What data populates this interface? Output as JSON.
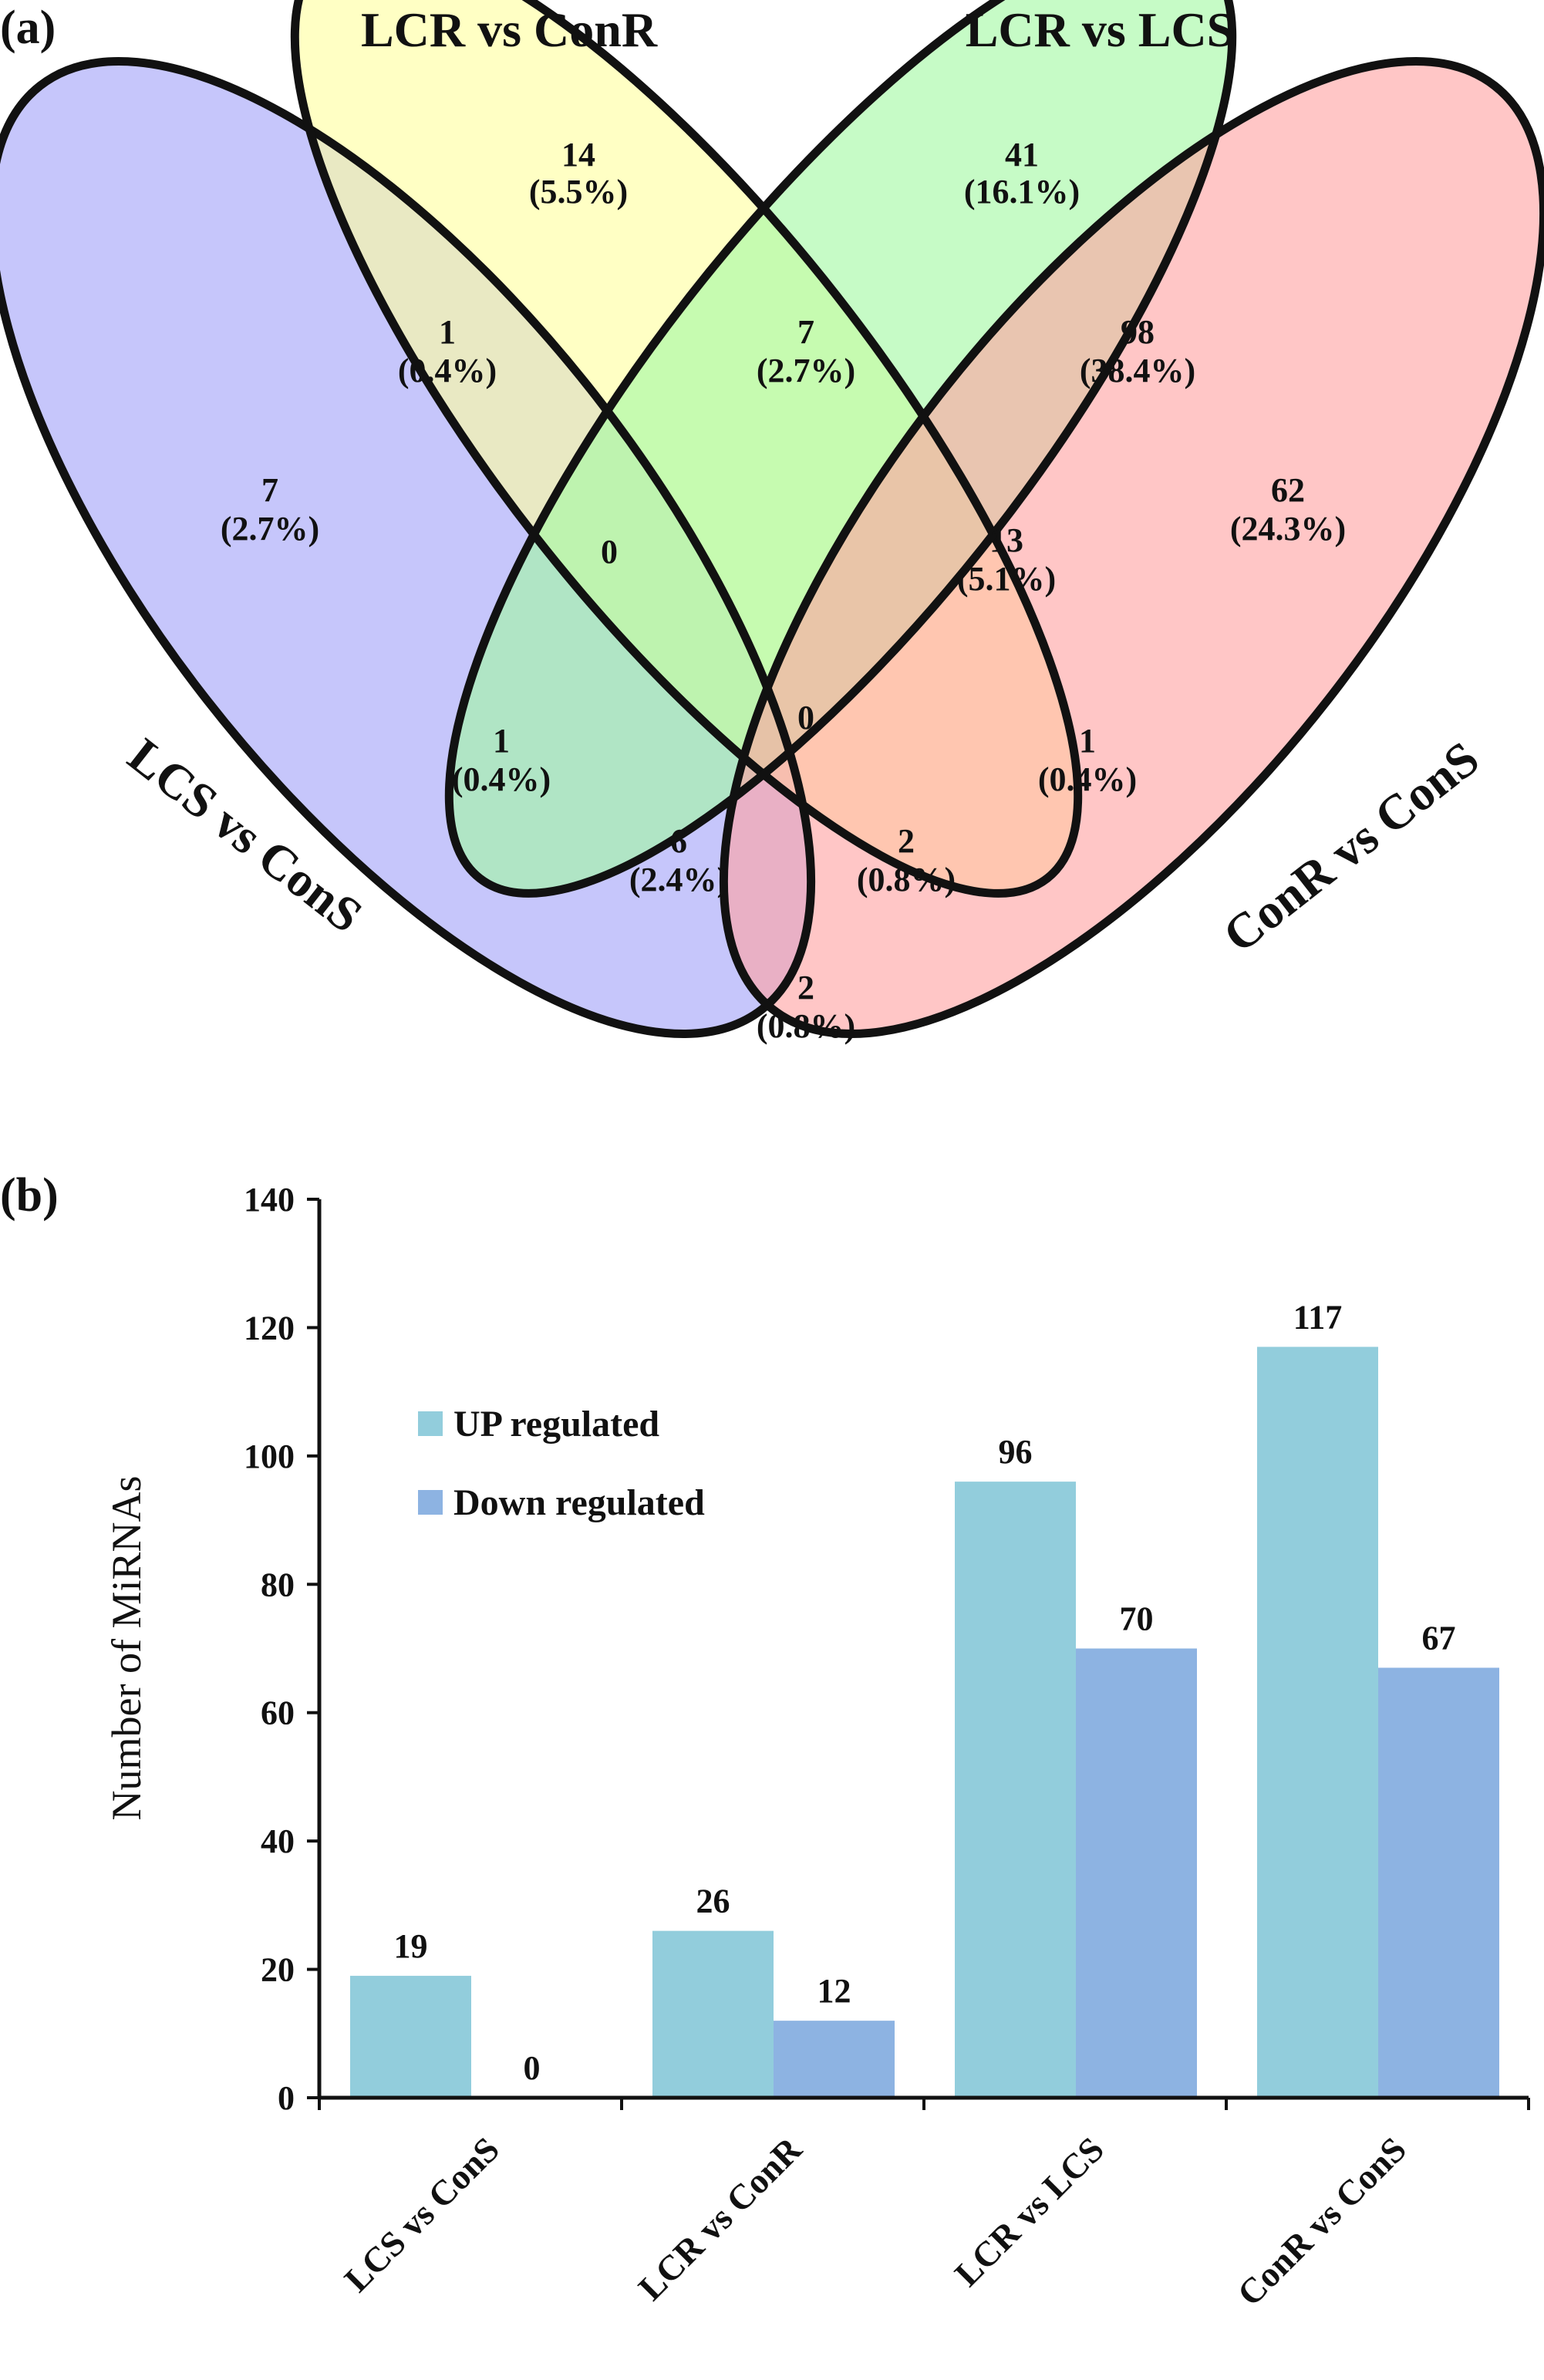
{
  "panels": {
    "a": "(a)",
    "b": "(b)"
  },
  "venn": {
    "sets": [
      {
        "id": "lcs_cons",
        "label": "LCS vs ConS",
        "color": "#a3a3f8"
      },
      {
        "id": "lcr_conr",
        "label": "LCR vs ConR",
        "color": "#ffff9f"
      },
      {
        "id": "lcr_lcs",
        "label": "LCR vs LCS",
        "color": "#a3f8a3"
      },
      {
        "id": "conr_cons",
        "label": "ConR vs ConS",
        "color": "#ffa3a3"
      }
    ],
    "regions": [
      {
        "sets": [
          "lcs_cons"
        ],
        "count": "7",
        "pct": "(2.7%)"
      },
      {
        "sets": [
          "lcr_conr"
        ],
        "count": "14",
        "pct": "(5.5%)"
      },
      {
        "sets": [
          "lcr_lcs"
        ],
        "count": "41",
        "pct": "(16.1%)"
      },
      {
        "sets": [
          "conr_cons"
        ],
        "count": "62",
        "pct": "(24.3%)"
      },
      {
        "sets": [
          "lcs_cons",
          "lcr_conr"
        ],
        "count": "1",
        "pct": "(0.4%)"
      },
      {
        "sets": [
          "lcr_conr",
          "lcr_lcs"
        ],
        "count": "7",
        "pct": "(2.7%)"
      },
      {
        "sets": [
          "lcr_lcs",
          "conr_cons"
        ],
        "count": "98",
        "pct": "(38.4%)"
      },
      {
        "sets": [
          "lcs_cons",
          "lcr_conr",
          "lcr_lcs"
        ],
        "count": "0",
        "pct": ""
      },
      {
        "sets": [
          "lcr_conr",
          "lcr_lcs",
          "conr_cons"
        ],
        "count": "13",
        "pct": "(5.1%)"
      },
      {
        "sets": [
          "lcs_cons",
          "lcr_lcs"
        ],
        "count": "1",
        "pct": "(0.4%)"
      },
      {
        "sets": [
          "lcs_cons",
          "lcr_conr",
          "lcr_lcs",
          "conr_cons"
        ],
        "count": "0",
        "pct": ""
      },
      {
        "sets": [
          "lcr_conr",
          "conr_cons"
        ],
        "count": "1",
        "pct": "(0.4%)"
      },
      {
        "sets": [
          "lcs_cons",
          "lcr_lcs",
          "conr_cons"
        ],
        "count": "6",
        "pct": "(2.4%)"
      },
      {
        "sets": [
          "lcs_cons",
          "lcr_conr",
          "conr_cons"
        ],
        "count": "2",
        "pct": "(0.8%)"
      },
      {
        "sets": [
          "lcs_cons",
          "conr_cons"
        ],
        "count": "2",
        "pct": "(0.8%)"
      }
    ]
  },
  "chart_data": {
    "type": "bar",
    "categories": [
      "LCS vs ConS",
      "LCR vs ConR",
      "LCR vs LCS",
      "ConR vs ConS"
    ],
    "series": [
      {
        "name": "UP regulated",
        "values": [
          19,
          26,
          96,
          117
        ],
        "color": "#92cddc"
      },
      {
        "name": "Down regulated",
        "values": [
          0,
          12,
          70,
          67
        ],
        "color": "#8db3e2"
      }
    ],
    "ylabel": "Number of MiRNAs",
    "xlabel": "",
    "ylim": [
      0,
      140
    ],
    "yticks": [
      0,
      20,
      40,
      60,
      80,
      100,
      120,
      140
    ],
    "grid": false,
    "legend": "upper-left"
  }
}
